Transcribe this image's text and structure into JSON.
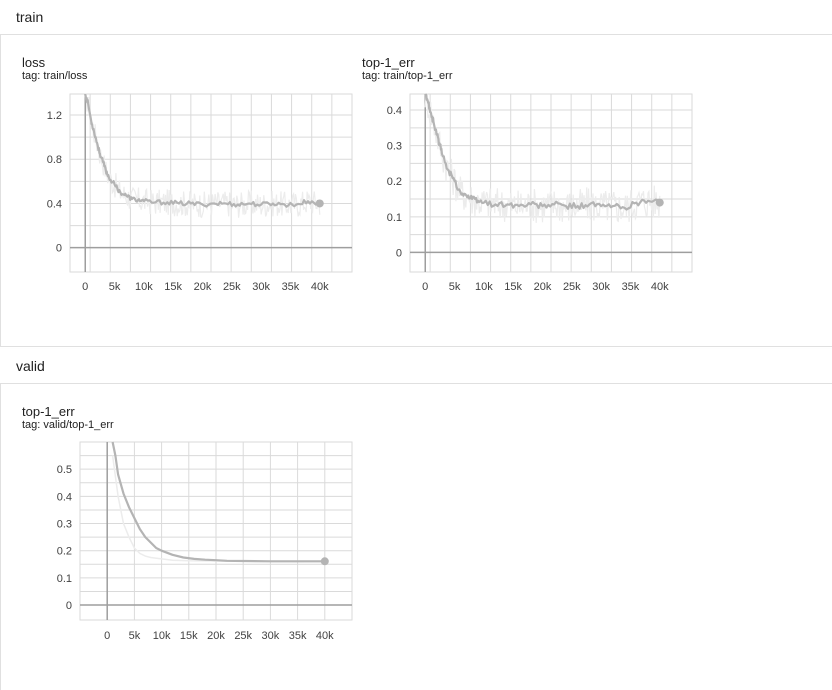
{
  "sections": {
    "train": {
      "title": "train"
    },
    "valid": {
      "title": "valid"
    }
  },
  "colors": {
    "series_line": "#b4b4b4",
    "series_raw": "#ececec",
    "grid": "#dadada",
    "axis": "#9e9e9e"
  },
  "chart_data": [
    {
      "id": "train_loss",
      "type": "line",
      "title": "loss",
      "tag": "tag: train/loss",
      "xticks": [
        0,
        5000,
        10000,
        15000,
        20000,
        25000,
        30000,
        35000,
        40000
      ],
      "xtick_labels": [
        "0",
        "5k",
        "10k",
        "15k",
        "20k",
        "25k",
        "30k",
        "35k",
        "40k"
      ],
      "yticks": [
        0,
        0.4,
        0.8,
        1.2
      ],
      "ytick_labels": [
        "0",
        "0.4",
        "0.8",
        "1.2"
      ],
      "xlim": [
        -2600,
        45500
      ],
      "ylim": [
        -0.22,
        1.39
      ],
      "grid": true,
      "series": [
        {
          "points": [
            [
              0,
              1.39
            ],
            [
              500,
              1.3
            ],
            [
              1000,
              1.15
            ],
            [
              1500,
              1.05
            ],
            [
              2000,
              0.95
            ],
            [
              2500,
              0.85
            ],
            [
              3000,
              0.78
            ],
            [
              3500,
              0.7
            ],
            [
              4000,
              0.64
            ],
            [
              5000,
              0.57
            ],
            [
              6000,
              0.5
            ],
            [
              7000,
              0.47
            ],
            [
              8000,
              0.44
            ],
            [
              9000,
              0.43
            ],
            [
              10000,
              0.42
            ],
            [
              12000,
              0.41
            ],
            [
              14000,
              0.41
            ],
            [
              16000,
              0.4
            ],
            [
              18000,
              0.4
            ],
            [
              20000,
              0.39
            ],
            [
              22000,
              0.4
            ],
            [
              24000,
              0.4
            ],
            [
              26000,
              0.39
            ],
            [
              28000,
              0.4
            ],
            [
              30000,
              0.39
            ],
            [
              32000,
              0.4
            ],
            [
              34000,
              0.39
            ],
            [
              36000,
              0.39
            ],
            [
              38000,
              0.42
            ],
            [
              40000,
              0.4
            ]
          ],
          "raw_band": 0.12
        }
      ]
    },
    {
      "id": "train_top1",
      "type": "line",
      "title": "top-1_err",
      "tag": "tag: train/top-1_err",
      "xticks": [
        0,
        5000,
        10000,
        15000,
        20000,
        25000,
        30000,
        35000,
        40000
      ],
      "xtick_labels": [
        "0",
        "5k",
        "10k",
        "15k",
        "20k",
        "25k",
        "30k",
        "35k",
        "40k"
      ],
      "yticks": [
        0,
        0.1,
        0.2,
        0.3,
        0.4
      ],
      "ytick_labels": [
        "0",
        "0.1",
        "0.2",
        "0.3",
        "0.4"
      ],
      "xlim": [
        -2600,
        45500
      ],
      "ylim": [
        -0.055,
        0.445
      ],
      "grid": true,
      "series": [
        {
          "points": [
            [
              0,
              0.445
            ],
            [
              500,
              0.42
            ],
            [
              1000,
              0.39
            ],
            [
              1500,
              0.36
            ],
            [
              2000,
              0.33
            ],
            [
              2500,
              0.3
            ],
            [
              3000,
              0.27
            ],
            [
              4000,
              0.23
            ],
            [
              5000,
              0.2
            ],
            [
              6000,
              0.17
            ],
            [
              7000,
              0.16
            ],
            [
              8000,
              0.15
            ],
            [
              9000,
              0.145
            ],
            [
              10000,
              0.14
            ],
            [
              12000,
              0.135
            ],
            [
              14000,
              0.135
            ],
            [
              16000,
              0.13
            ],
            [
              18000,
              0.135
            ],
            [
              20000,
              0.13
            ],
            [
              22000,
              0.135
            ],
            [
              24000,
              0.13
            ],
            [
              26000,
              0.13
            ],
            [
              28000,
              0.135
            ],
            [
              30000,
              0.13
            ],
            [
              32000,
              0.13
            ],
            [
              34000,
              0.125
            ],
            [
              36000,
              0.14
            ],
            [
              38000,
              0.145
            ],
            [
              40000,
              0.14
            ]
          ],
          "raw_band": 0.05
        }
      ]
    },
    {
      "id": "valid_top1",
      "type": "line",
      "title": "top-1_err",
      "tag": "tag: valid/top-1_err",
      "xticks": [
        0,
        5000,
        10000,
        15000,
        20000,
        25000,
        30000,
        35000,
        40000
      ],
      "xtick_labels": [
        "0",
        "5k",
        "10k",
        "15k",
        "20k",
        "25k",
        "30k",
        "35k",
        "40k"
      ],
      "yticks": [
        0,
        0.1,
        0.2,
        0.3,
        0.4,
        0.5
      ],
      "ytick_labels": [
        "0",
        "0.1",
        "0.2",
        "0.3",
        "0.4",
        "0.5"
      ],
      "xlim": [
        -5000,
        45000
      ],
      "ylim": [
        -0.055,
        0.6
      ],
      "grid": true,
      "series": [
        {
          "points": [
            [
              1000,
              0.6
            ],
            [
              1500,
              0.55
            ],
            [
              2000,
              0.48
            ],
            [
              3000,
              0.41
            ],
            [
              4000,
              0.36
            ],
            [
              5000,
              0.32
            ],
            [
              6000,
              0.28
            ],
            [
              7000,
              0.25
            ],
            [
              8000,
              0.23
            ],
            [
              9000,
              0.21
            ],
            [
              10000,
              0.2
            ],
            [
              12000,
              0.185
            ],
            [
              14000,
              0.175
            ],
            [
              16000,
              0.17
            ],
            [
              18000,
              0.167
            ],
            [
              20000,
              0.165
            ],
            [
              22000,
              0.163
            ],
            [
              25000,
              0.162
            ],
            [
              30000,
              0.161
            ],
            [
              35000,
              0.161
            ],
            [
              40000,
              0.161
            ]
          ],
          "raw": [
            [
              1000,
              0.55
            ],
            [
              2000,
              0.4
            ],
            [
              3000,
              0.3
            ],
            [
              4000,
              0.25
            ],
            [
              5000,
              0.21
            ],
            [
              6000,
              0.19
            ],
            [
              7000,
              0.18
            ],
            [
              8000,
              0.175
            ],
            [
              10000,
              0.17
            ],
            [
              12000,
              0.165
            ],
            [
              15000,
              0.163
            ],
            [
              20000,
              0.162
            ],
            [
              25000,
              0.161
            ],
            [
              30000,
              0.161
            ],
            [
              35000,
              0.16
            ],
            [
              40000,
              0.161
            ]
          ],
          "end_marker": true
        }
      ]
    }
  ]
}
